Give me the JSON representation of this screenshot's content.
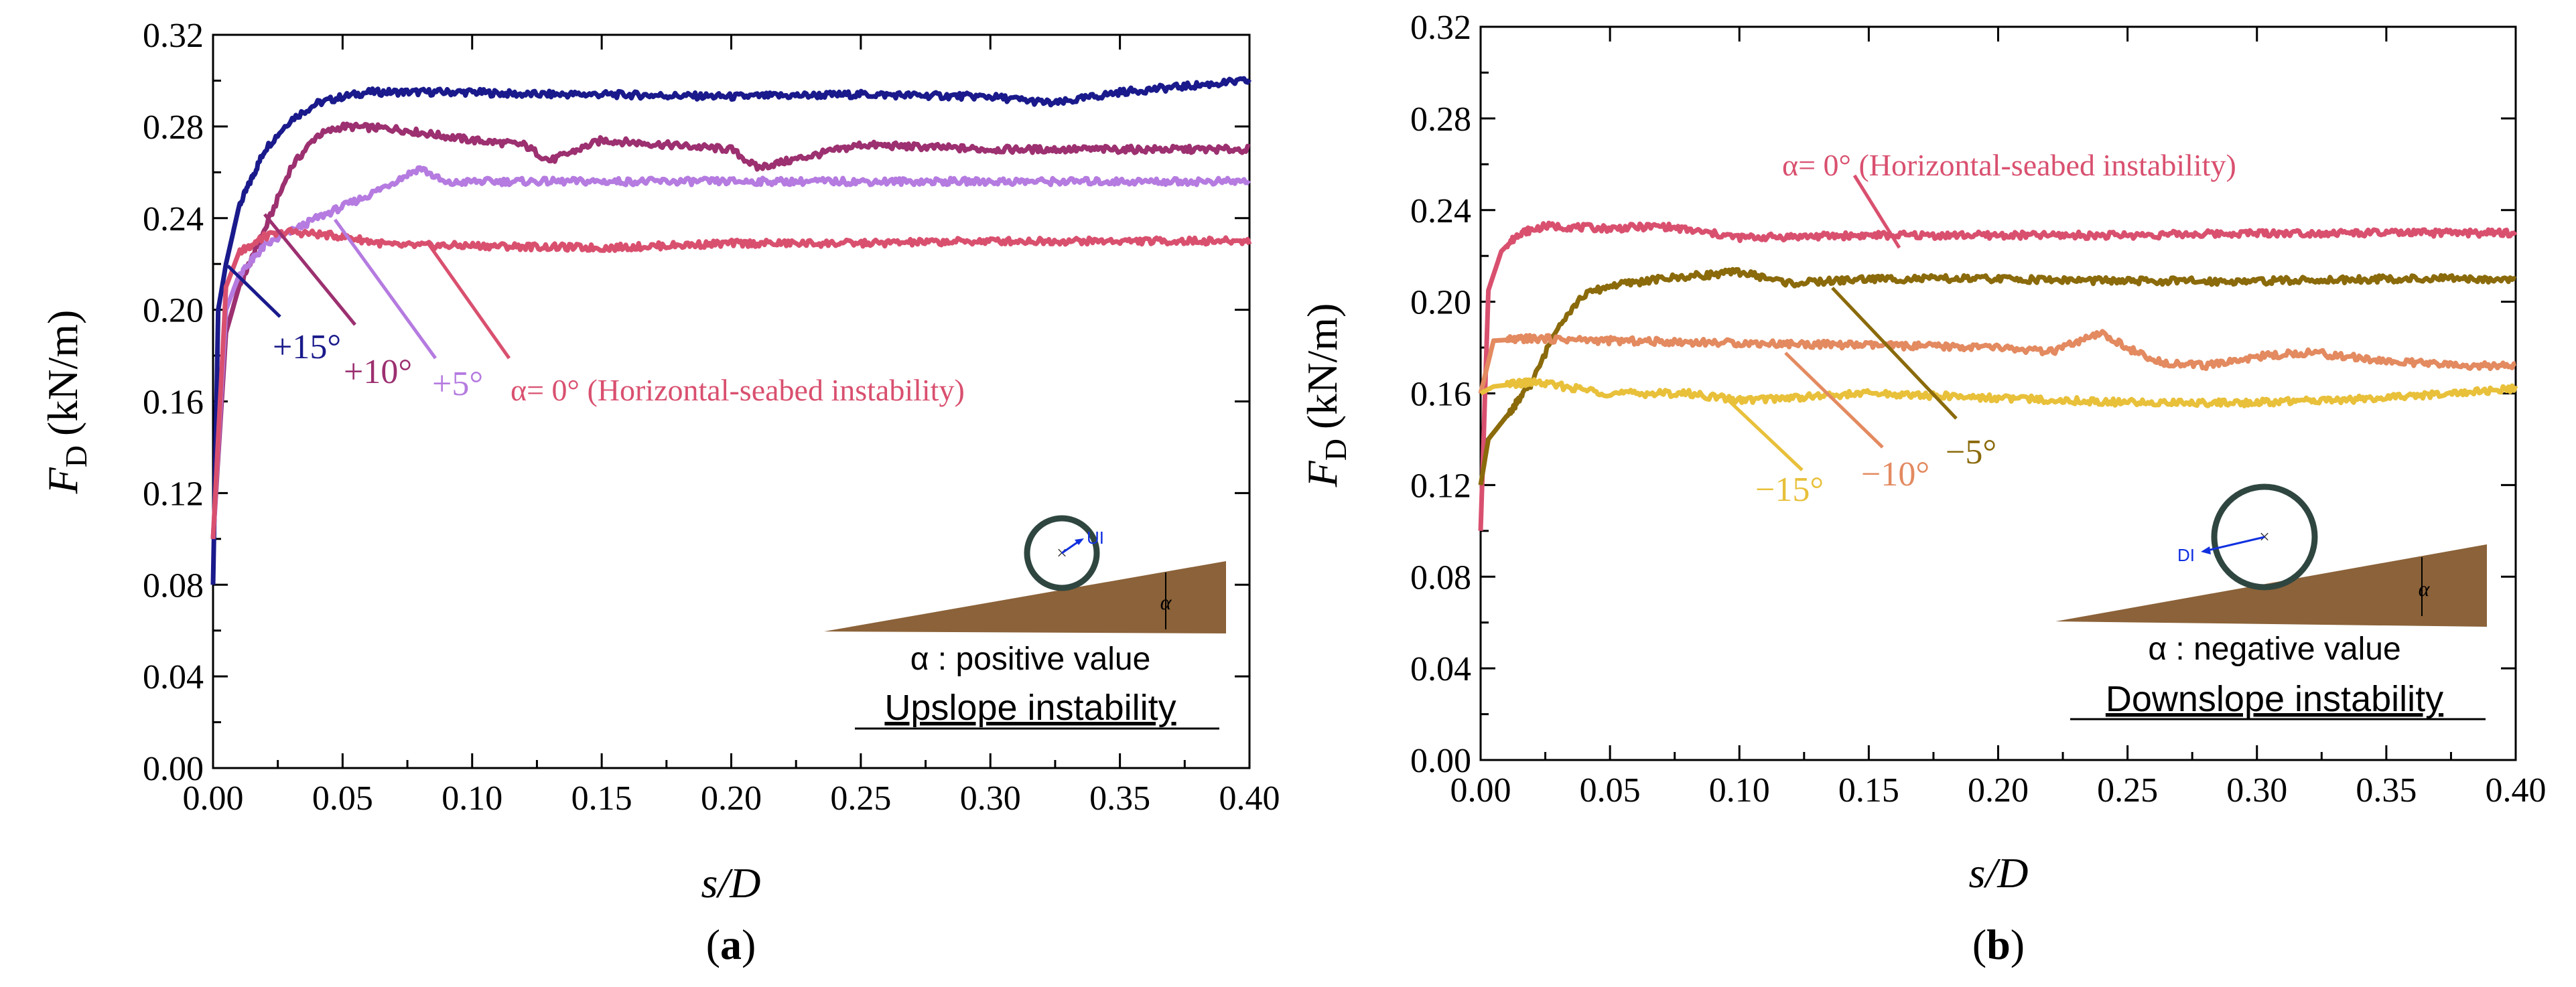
{
  "chart_data": [
    {
      "panel_label": "a",
      "type": "line",
      "xlabel": "s/D",
      "ylabel_main": "F",
      "ylabel_sub": "D",
      "ylabel_unit": "(kN/m)",
      "xlim": [
        0,
        0.4
      ],
      "ylim": [
        0,
        0.32
      ],
      "xticks": [
        "0.00",
        "0.05",
        "0.10",
        "0.15",
        "0.20",
        "0.25",
        "0.30",
        "0.35",
        "0.40"
      ],
      "yticks": [
        "0.00",
        "0.04",
        "0.08",
        "0.12",
        "0.16",
        "0.20",
        "0.24",
        "0.28",
        "0.32"
      ],
      "inset_title": "α : positive value",
      "inset_caption": "Upslope instability",
      "inset_symbol": "α",
      "inset_arrow_label": "UI",
      "series": [
        {
          "name": "+15°",
          "color": "#1a1a8c",
          "x": [
            0,
            0.002,
            0.005,
            0.01,
            0.02,
            0.03,
            0.04,
            0.05,
            0.06,
            0.08,
            0.1,
            0.12,
            0.15,
            0.2,
            0.25,
            0.3,
            0.325,
            0.35,
            0.38,
            0.4
          ],
          "y": [
            0.08,
            0.2,
            0.22,
            0.245,
            0.27,
            0.283,
            0.29,
            0.293,
            0.295,
            0.295,
            0.295,
            0.294,
            0.294,
            0.293,
            0.294,
            0.293,
            0.29,
            0.295,
            0.298,
            0.3
          ]
        },
        {
          "name": "+10°",
          "color": "#9c3070",
          "x": [
            0,
            0.005,
            0.01,
            0.02,
            0.03,
            0.04,
            0.05,
            0.07,
            0.1,
            0.12,
            0.13,
            0.15,
            0.2,
            0.21,
            0.25,
            0.3,
            0.35,
            0.4
          ],
          "y": [
            0.1,
            0.19,
            0.21,
            0.235,
            0.262,
            0.276,
            0.28,
            0.279,
            0.274,
            0.272,
            0.265,
            0.274,
            0.27,
            0.262,
            0.272,
            0.27,
            0.27,
            0.27
          ]
        },
        {
          "name": "+5°",
          "color": "#b57be0",
          "x": [
            0,
            0.005,
            0.01,
            0.02,
            0.04,
            0.06,
            0.08,
            0.09,
            0.1,
            0.15,
            0.2,
            0.25,
            0.3,
            0.35,
            0.4
          ],
          "y": [
            0.1,
            0.2,
            0.215,
            0.228,
            0.24,
            0.25,
            0.262,
            0.255,
            0.256,
            0.256,
            0.256,
            0.256,
            0.256,
            0.256,
            0.256
          ]
        },
        {
          "name": "α= 0° (Horizontal-seabed instability)",
          "color": "#d9506f",
          "x": [
            0,
            0.005,
            0.01,
            0.02,
            0.03,
            0.05,
            0.07,
            0.1,
            0.15,
            0.2,
            0.25,
            0.3,
            0.35,
            0.4
          ],
          "y": [
            0.1,
            0.21,
            0.225,
            0.232,
            0.234,
            0.232,
            0.228,
            0.228,
            0.227,
            0.229,
            0.229,
            0.23,
            0.23,
            0.23
          ]
        }
      ],
      "annotations": [
        {
          "text": "+15°",
          "color": "#1a1a8c"
        },
        {
          "text": "+10°",
          "color": "#9c3070"
        },
        {
          "text": "+5°",
          "color": "#b57be0"
        },
        {
          "text": "α= 0° (Horizontal-seabed instability)",
          "color": "#d9506f"
        }
      ]
    },
    {
      "panel_label": "b",
      "type": "line",
      "xlabel": "s/D",
      "ylabel_main": "F",
      "ylabel_sub": "D",
      "ylabel_unit": "(kN/m)",
      "xlim": [
        0,
        0.4
      ],
      "ylim": [
        0,
        0.32
      ],
      "xticks": [
        "0.00",
        "0.05",
        "0.10",
        "0.15",
        "0.20",
        "0.25",
        "0.30",
        "0.35",
        "0.40"
      ],
      "yticks": [
        "0.00",
        "0.04",
        "0.08",
        "0.12",
        "0.16",
        "0.20",
        "0.24",
        "0.28",
        "0.32"
      ],
      "inset_title": "α : negative value",
      "inset_caption": "Downslope instability",
      "inset_symbol": "α",
      "inset_arrow_label": "DI",
      "series": [
        {
          "name": "α= 0° (Horizontal-seabed instability)",
          "color": "#d9506f",
          "x": [
            0,
            0.003,
            0.008,
            0.015,
            0.025,
            0.05,
            0.07,
            0.1,
            0.15,
            0.2,
            0.25,
            0.3,
            0.35,
            0.4
          ],
          "y": [
            0.1,
            0.205,
            0.222,
            0.23,
            0.233,
            0.232,
            0.233,
            0.228,
            0.229,
            0.229,
            0.229,
            0.23,
            0.23,
            0.23
          ]
        },
        {
          "name": "−5°",
          "color": "#8a6a0a",
          "x": [
            0,
            0.003,
            0.01,
            0.02,
            0.03,
            0.04,
            0.05,
            0.07,
            0.1,
            0.12,
            0.15,
            0.2,
            0.25,
            0.3,
            0.35,
            0.4
          ],
          "y": [
            0.12,
            0.14,
            0.15,
            0.165,
            0.19,
            0.203,
            0.207,
            0.21,
            0.213,
            0.208,
            0.21,
            0.21,
            0.209,
            0.209,
            0.21,
            0.21
          ]
        },
        {
          "name": "−10°",
          "color": "#e38a60",
          "x": [
            0,
            0.005,
            0.02,
            0.05,
            0.1,
            0.15,
            0.2,
            0.22,
            0.24,
            0.26,
            0.28,
            0.3,
            0.32,
            0.35,
            0.38,
            0.4
          ],
          "y": [
            0.16,
            0.183,
            0.184,
            0.183,
            0.182,
            0.181,
            0.18,
            0.178,
            0.186,
            0.174,
            0.172,
            0.176,
            0.178,
            0.174,
            0.172,
            0.172
          ]
        },
        {
          "name": "−15°",
          "color": "#e8c03a",
          "x": [
            0,
            0.005,
            0.02,
            0.05,
            0.08,
            0.1,
            0.15,
            0.2,
            0.25,
            0.3,
            0.35,
            0.4
          ],
          "y": [
            0.16,
            0.163,
            0.165,
            0.16,
            0.16,
            0.157,
            0.16,
            0.158,
            0.156,
            0.156,
            0.158,
            0.162
          ]
        }
      ],
      "annotations": [
        {
          "text": "α= 0° (Horizontal-seabed instability)",
          "color": "#d9506f"
        },
        {
          "text": "−5°",
          "color": "#8a6a0a"
        },
        {
          "text": "−10°",
          "color": "#e38a60"
        },
        {
          "text": "−15°",
          "color": "#e8c03a"
        }
      ]
    }
  ]
}
